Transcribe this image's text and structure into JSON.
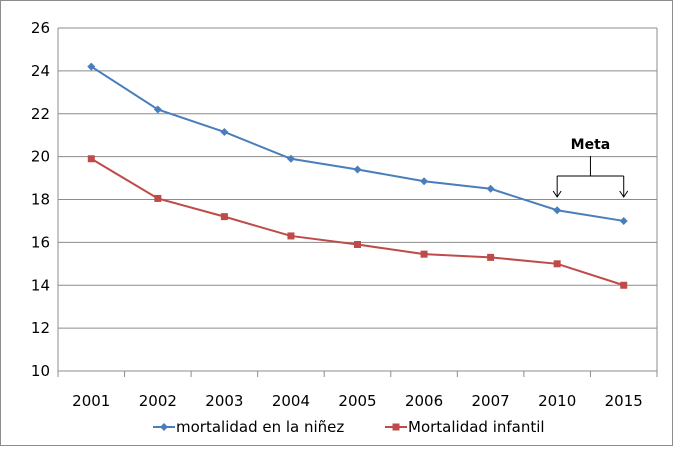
{
  "chart_data": {
    "type": "line",
    "title": "",
    "xlabel": "",
    "ylabel": "",
    "categories": [
      "2001",
      "2002",
      "2003",
      "2004",
      "2005",
      "2006",
      "2007",
      "2010",
      "2015"
    ],
    "ylim": [
      10,
      26
    ],
    "yticks": [
      "10",
      "12",
      "14",
      "16",
      "18",
      "20",
      "22",
      "24",
      "26"
    ],
    "grid": true,
    "legend_position": "bottom",
    "series": [
      {
        "name": "mortalidad en la niñez",
        "color": "#4a7ebb",
        "marker": "diamond",
        "values": [
          24.2,
          22.2,
          21.15,
          19.9,
          19.4,
          18.85,
          18.5,
          17.5,
          17.0
        ]
      },
      {
        "name": "Mortalidad infantil",
        "color": "#be4b48",
        "marker": "square",
        "values": [
          19.9,
          18.05,
          17.2,
          16.3,
          15.9,
          15.45,
          15.3,
          15.0,
          14.0
        ]
      }
    ],
    "annotations": [
      {
        "text": "Meta",
        "targets": [
          "2010",
          "2015"
        ]
      }
    ]
  }
}
